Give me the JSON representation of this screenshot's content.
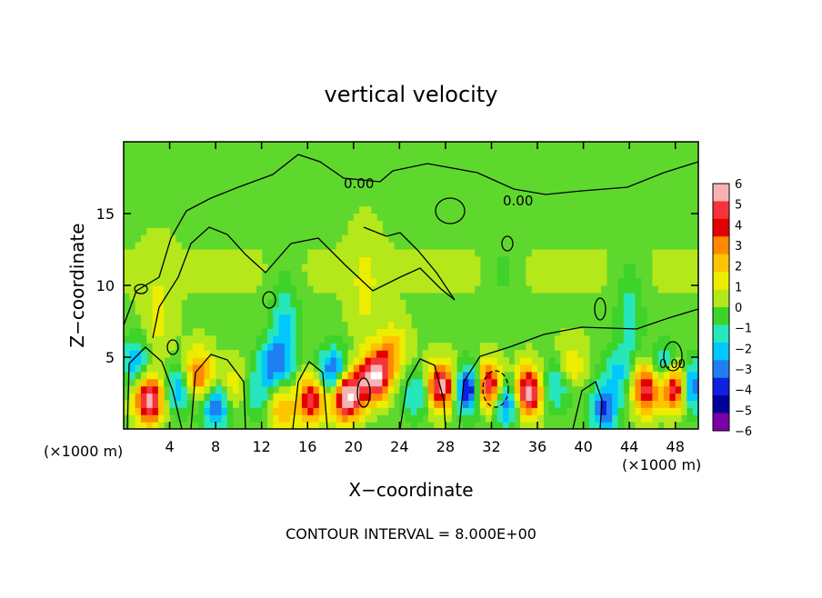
{
  "chart_data": {
    "type": "heatmap",
    "title": "vertical velocity",
    "xlabel": "X−coordinate",
    "ylabel": "Z−coordinate",
    "x_unit": "(×1000 m)",
    "y_unit": "(×1000 m)",
    "xlim": [
      0,
      50
    ],
    "ylim": [
      0,
      20
    ],
    "x_ticks": [
      4,
      8,
      12,
      16,
      20,
      24,
      28,
      32,
      36,
      40,
      44,
      48
    ],
    "y_ticks": [
      5,
      10,
      15
    ],
    "colorbar": {
      "min": -6,
      "max": 6,
      "ticks": [
        6,
        5,
        4,
        3,
        2,
        1,
        0,
        -1,
        -2,
        -3,
        -4,
        -5,
        -6
      ],
      "tick_labels": [
        "6",
        "5",
        "4",
        "3",
        "2",
        "1",
        "0",
        "−1",
        "−2",
        "−3",
        "−4",
        "−5",
        "−6"
      ],
      "colors": [
        "#f7b3b3",
        "#f5333a",
        "#e30000",
        "#ff8a00",
        "#ffc400",
        "#eded00",
        "#b4e81b",
        "#3ed32a",
        "#27e6bd",
        "#00c8ff",
        "#1f7ff0",
        "#0e22dd",
        "#00009a",
        "#7a00a8"
      ]
    },
    "contour_labels": [
      "0.00",
      "0.00",
      "0.00"
    ],
    "contour_interval_text": "CONTOUR INTERVAL = 8.000E+00",
    "background_value": 0.3,
    "features": [
      {
        "x": 2.2,
        "z": 2.0,
        "w": 6.5
      },
      {
        "x": 1.0,
        "z": 4.8,
        "w": -2.5
      },
      {
        "x": 4.8,
        "z": 2.8,
        "w": -2.5
      },
      {
        "x": 6.5,
        "z": 3.8,
        "w": 4.0
      },
      {
        "x": 8.0,
        "z": 1.5,
        "w": -3.5
      },
      {
        "x": 9.5,
        "z": 3.0,
        "w": 1.5
      },
      {
        "x": 11.5,
        "z": 2.5,
        "w": -1.5
      },
      {
        "x": 12.8,
        "z": 4.5,
        "w": -3.0
      },
      {
        "x": 13.8,
        "z": 1.5,
        "w": 3.0
      },
      {
        "x": 14.0,
        "z": 6.5,
        "w": -2.5
      },
      {
        "x": 16.3,
        "z": 2.0,
        "w": 5.0
      },
      {
        "x": 18.2,
        "z": 4.0,
        "w": -4.0
      },
      {
        "x": 19.3,
        "z": 2.2,
        "w": 6.5
      },
      {
        "x": 20.5,
        "z": 3.0,
        "w": 3.0
      },
      {
        "x": 22.0,
        "z": 3.8,
        "w": 7.0
      },
      {
        "x": 23.5,
        "z": 5.5,
        "w": 2.5
      },
      {
        "x": 25.5,
        "z": 2.5,
        "w": -2.0
      },
      {
        "x": 27.6,
        "z": 3.0,
        "w": 6.0
      },
      {
        "x": 30.0,
        "z": 2.8,
        "w": -5.0
      },
      {
        "x": 31.8,
        "z": 3.0,
        "w": 6.0
      },
      {
        "x": 33.2,
        "z": 2.0,
        "w": -4.0
      },
      {
        "x": 35.2,
        "z": 2.6,
        "w": 6.5
      },
      {
        "x": 37.5,
        "z": 3.0,
        "w": -2.0
      },
      {
        "x": 39.0,
        "z": 4.5,
        "w": 1.5
      },
      {
        "x": 41.8,
        "z": 1.5,
        "w": -4.0
      },
      {
        "x": 43.0,
        "z": 4.0,
        "w": -2.0
      },
      {
        "x": 45.5,
        "z": 2.8,
        "w": 5.5
      },
      {
        "x": 47.0,
        "z": 4.2,
        "w": -3.0
      },
      {
        "x": 47.9,
        "z": 3.0,
        "w": 6.0
      },
      {
        "x": 49.5,
        "z": 3.0,
        "w": -4.0
      },
      {
        "x": 21.0,
        "z": 10.0,
        "w": 1.0
      },
      {
        "x": 33.0,
        "z": 11.0,
        "w": -0.6
      },
      {
        "x": 44.0,
        "z": 8.0,
        "w": -1.5
      },
      {
        "x": 3.0,
        "z": 8.0,
        "w": 1.0
      }
    ]
  }
}
